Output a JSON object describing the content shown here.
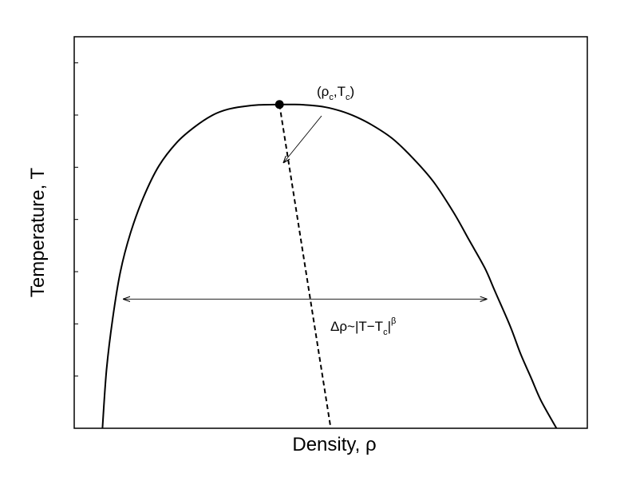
{
  "chart_data": {
    "type": "line",
    "xlabel": "Density, ρ",
    "ylabel": "Temperature, T",
    "grid": false,
    "legend": "none",
    "xlim": [
      0,
      1
    ],
    "ylim": [
      0,
      1
    ],
    "series": [
      {
        "role": "coexistence-curve",
        "style": "solid",
        "x": [
          0.055,
          0.063,
          0.075,
          0.09,
          0.11,
          0.135,
          0.165,
          0.2,
          0.235,
          0.27,
          0.3,
          0.33,
          0.36,
          0.4,
          0.43,
          0.46,
          0.49,
          0.52,
          0.55,
          0.58,
          0.62,
          0.66,
          0.7,
          0.74,
          0.77,
          0.8,
          0.82,
          0.85,
          0.87,
          0.89,
          0.91,
          0.94
        ],
        "y": [
          0.0,
          0.15,
          0.28,
          0.4,
          0.5,
          0.59,
          0.67,
          0.73,
          0.77,
          0.8,
          0.815,
          0.822,
          0.826,
          0.827,
          0.827,
          0.825,
          0.82,
          0.81,
          0.795,
          0.775,
          0.74,
          0.69,
          0.63,
          0.55,
          0.48,
          0.41,
          0.35,
          0.26,
          0.19,
          0.13,
          0.07,
          0.0
        ]
      },
      {
        "role": "rectilinear-diameter",
        "style": "dashed",
        "x": [
          0.4,
          0.5
        ],
        "y": [
          0.827,
          0.0
        ]
      }
    ],
    "critical_point": {
      "x": 0.4,
      "y": 0.827,
      "label_parts": [
        "(ρ",
        "c",
        ",T",
        "c",
        ")"
      ]
    },
    "width_arrow": {
      "y": 0.33,
      "x_start": 0.095,
      "x_end": 0.805,
      "label_parts": [
        "Δρ~|T−T",
        "c",
        "|",
        "β"
      ]
    }
  }
}
